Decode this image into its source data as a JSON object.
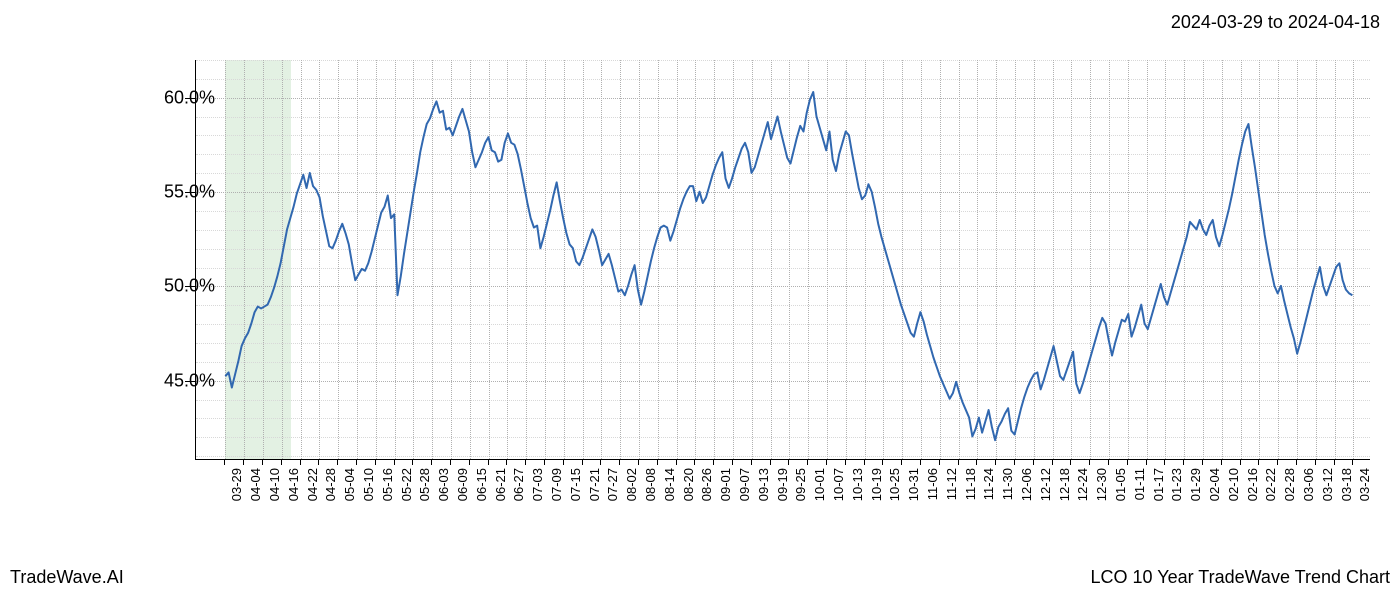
{
  "header": {
    "date_range": "2024-03-29 to 2024-04-18"
  },
  "footer": {
    "left": "TradeWave.AI",
    "right": "LCO 10 Year TradeWave Trend Chart"
  },
  "chart": {
    "type": "line",
    "background_color": "#ffffff",
    "axis_color": "#000000",
    "grid_major_color": "#b0b0b0",
    "grid_minor_color": "#d8d8d8",
    "line_color": "#3168b0",
    "line_width": 2.0,
    "highlight_color": "rgba(144,200,144,0.25)",
    "y_axis": {
      "min": 40.8,
      "max": 62.0,
      "ticks": [
        45.0,
        50.0,
        55.0,
        60.0
      ],
      "labels": [
        "45.0%",
        "50.0%",
        "55.0%",
        "60.0%"
      ],
      "label_fontsize": 18
    },
    "x_axis": {
      "labels": [
        "03-29",
        "04-04",
        "04-10",
        "04-16",
        "04-22",
        "04-28",
        "05-04",
        "05-10",
        "05-16",
        "05-22",
        "05-28",
        "06-03",
        "06-09",
        "06-15",
        "06-21",
        "06-27",
        "07-03",
        "07-09",
        "07-15",
        "07-21",
        "07-27",
        "08-02",
        "08-08",
        "08-14",
        "08-20",
        "08-26",
        "09-01",
        "09-07",
        "09-13",
        "09-19",
        "09-25",
        "10-01",
        "10-07",
        "10-13",
        "10-19",
        "10-25",
        "10-31",
        "11-06",
        "11-12",
        "11-18",
        "11-24",
        "11-30",
        "12-06",
        "12-12",
        "12-18",
        "12-24",
        "12-30",
        "01-05",
        "01-11",
        "01-17",
        "01-23",
        "01-29",
        "02-04",
        "02-10",
        "02-16",
        "02-22",
        "02-28",
        "03-06",
        "03-12",
        "03-18",
        "03-24"
      ],
      "label_fontsize": 13,
      "rotation": -90
    },
    "highlight_band": {
      "start_idx": 0,
      "end_idx": 3.5
    },
    "series": {
      "values": [
        45.2,
        45.4,
        44.6,
        45.3,
        46.0,
        46.8,
        47.2,
        47.5,
        48.0,
        48.6,
        48.9,
        48.8,
        48.9,
        49.0,
        49.4,
        49.9,
        50.5,
        51.2,
        52.1,
        53.0,
        53.6,
        54.2,
        54.9,
        55.4,
        55.9,
        55.2,
        56.0,
        55.3,
        55.1,
        54.7,
        53.7,
        52.9,
        52.1,
        52.0,
        52.4,
        52.9,
        53.3,
        52.8,
        52.2,
        51.2,
        50.3,
        50.6,
        50.9,
        50.8,
        51.2,
        51.8,
        52.5,
        53.2,
        53.9,
        54.2,
        54.8,
        53.6,
        53.8,
        49.5,
        50.5,
        51.7,
        52.8,
        53.9,
        55.0,
        56.0,
        57.1,
        57.9,
        58.6,
        58.9,
        59.4,
        59.8,
        59.2,
        59.3,
        58.3,
        58.4,
        58.0,
        58.5,
        59.0,
        59.4,
        58.8,
        58.2,
        57.1,
        56.3,
        56.7,
        57.1,
        57.6,
        57.9,
        57.2,
        57.1,
        56.6,
        56.7,
        57.6,
        58.1,
        57.6,
        57.5,
        57.0,
        56.2,
        55.3,
        54.4,
        53.6,
        53.1,
        53.2,
        52.0,
        52.6,
        53.3,
        54.0,
        54.8,
        55.5,
        54.5,
        53.6,
        52.8,
        52.2,
        52.0,
        51.3,
        51.1,
        51.5,
        52.0,
        52.5,
        53.0,
        52.6,
        51.9,
        51.1,
        51.4,
        51.7,
        51.1,
        50.4,
        49.7,
        49.8,
        49.5,
        50.0,
        50.6,
        51.1,
        49.8,
        49.0,
        49.7,
        50.5,
        51.3,
        52.0,
        52.6,
        53.1,
        53.2,
        53.1,
        52.4,
        52.9,
        53.5,
        54.1,
        54.6,
        55.0,
        55.3,
        55.3,
        54.5,
        55.0,
        54.4,
        54.7,
        55.3,
        55.9,
        56.4,
        56.8,
        57.1,
        55.7,
        55.2,
        55.7,
        56.3,
        56.8,
        57.3,
        57.6,
        57.1,
        56.0,
        56.3,
        56.9,
        57.5,
        58.1,
        58.7,
        57.8,
        58.4,
        59.0,
        58.2,
        57.5,
        56.8,
        56.5,
        57.2,
        57.9,
        58.5,
        58.2,
        59.2,
        59.9,
        60.3,
        59.0,
        58.4,
        57.8,
        57.2,
        58.2,
        56.7,
        56.1,
        57.0,
        57.6,
        58.2,
        58.0,
        57.0,
        56.1,
        55.2,
        54.6,
        54.8,
        55.4,
        55.0,
        54.2,
        53.3,
        52.6,
        52.0,
        51.4,
        50.8,
        50.2,
        49.6,
        49.0,
        48.5,
        48.0,
        47.5,
        47.3,
        48.0,
        48.6,
        48.1,
        47.4,
        46.8,
        46.2,
        45.7,
        45.2,
        44.8,
        44.4,
        44.0,
        44.3,
        44.9,
        44.3,
        43.8,
        43.4,
        43.0,
        42.0,
        42.4,
        43.0,
        42.2,
        42.8,
        43.4,
        42.5,
        41.8,
        42.5,
        42.8,
        43.2,
        43.5,
        42.3,
        42.1,
        42.8,
        43.5,
        44.1,
        44.6,
        45.0,
        45.3,
        45.4,
        44.5,
        45.0,
        45.6,
        46.2,
        46.8,
        46.0,
        45.2,
        45.0,
        45.5,
        46.0,
        46.5,
        44.8,
        44.3,
        44.8,
        45.4,
        46.0,
        46.6,
        47.2,
        47.8,
        48.3,
        48.0,
        47.1,
        46.3,
        47.0,
        47.6,
        48.2,
        48.1,
        48.5,
        47.3,
        47.8,
        48.4,
        49.0,
        48.0,
        47.7,
        48.3,
        48.9,
        49.5,
        50.1,
        49.4,
        49.0,
        49.6,
        50.2,
        50.8,
        51.4,
        52.0,
        52.6,
        53.4,
        53.2,
        53.0,
        53.5,
        53.0,
        52.7,
        53.2,
        53.5,
        52.6,
        52.1,
        52.7,
        53.4,
        54.1,
        54.9,
        55.8,
        56.7,
        57.5,
        58.2,
        58.6,
        57.4,
        56.3,
        55.1,
        53.9,
        52.7,
        51.7,
        50.8,
        50.0,
        49.6,
        50.0,
        49.2,
        48.5,
        47.8,
        47.2,
        46.4,
        47.0,
        47.7,
        48.4,
        49.1,
        49.8,
        50.4,
        51.0,
        50.0,
        49.5,
        50.0,
        50.5,
        51.0,
        51.2,
        50.3,
        49.8,
        49.6,
        49.5
      ]
    }
  }
}
